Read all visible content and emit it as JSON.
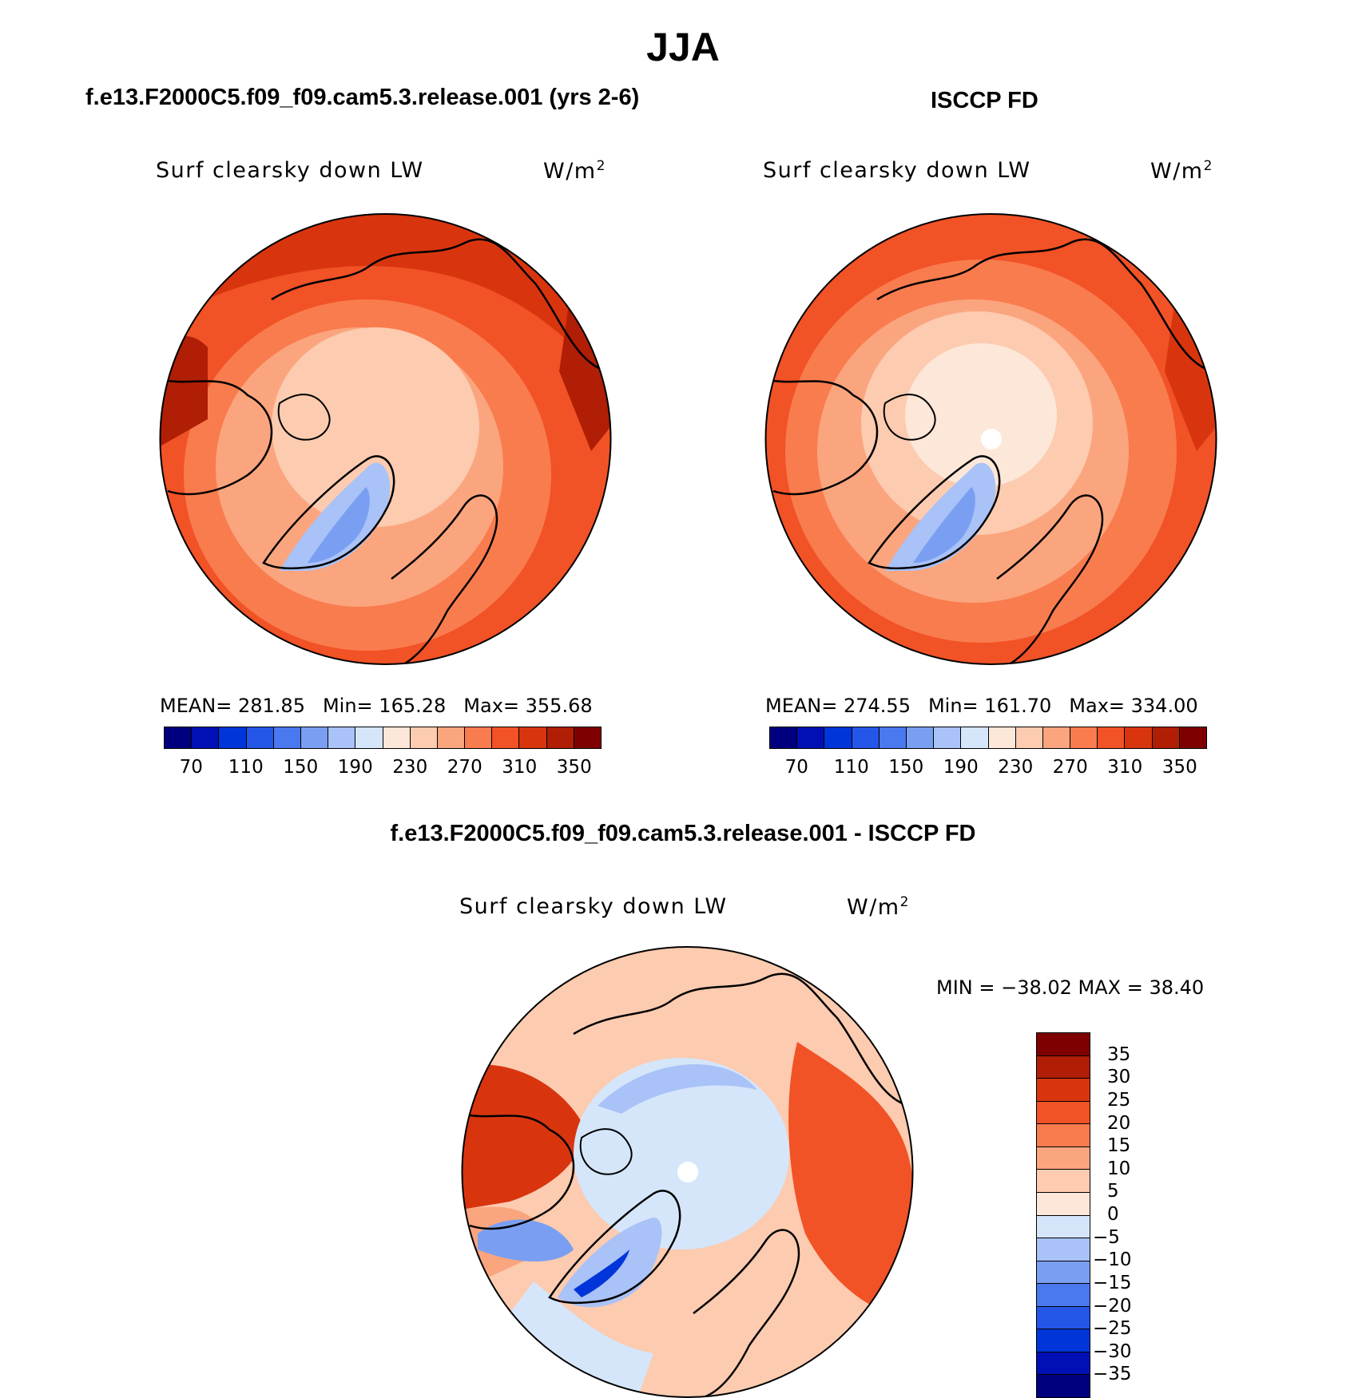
{
  "title": "JJA",
  "panels": {
    "left": {
      "title": "f.e13.F2000C5.f09_f09.cam5.3.release.001 (yrs 2-6)",
      "variable": "Surf clearsky down LW",
      "units": "W/m",
      "units_sup": "2",
      "stats": {
        "mean": "MEAN= 281.85",
        "min": "Min= 165.28",
        "max": "Max= 355.68"
      }
    },
    "right": {
      "title": "ISCCP FD",
      "variable": "Surf clearsky down LW",
      "units": "W/m",
      "units_sup": "2",
      "stats": {
        "mean": "MEAN= 274.55",
        "min": "Min= 161.70",
        "max": "Max= 334.00"
      }
    },
    "diff": {
      "title": "f.e13.F2000C5.f09_f09.cam5.3.release.001 - ISCCP FD",
      "variable": "Surf clearsky down LW",
      "units": "W/m",
      "units_sup": "2",
      "stats": "MIN = −38.02 MAX =  38.40"
    }
  },
  "colorbar_abs": {
    "colors": [
      "#00007f",
      "#0010b5",
      "#0036d9",
      "#2456e8",
      "#4a78ee",
      "#7a9ff2",
      "#a9c2f7",
      "#d5e6fb",
      "#fde7d8",
      "#fccbb0",
      "#fba57e",
      "#f97c4e",
      "#f15226",
      "#d8350f",
      "#b01e06",
      "#7f0000"
    ],
    "labels": [
      "70",
      "110",
      "150",
      "190",
      "230",
      "270",
      "310",
      "350"
    ]
  },
  "colorbar_diff": {
    "colors": [
      "#7f0000",
      "#b01e06",
      "#d8350f",
      "#f15226",
      "#f97c4e",
      "#fba57e",
      "#fccbb0",
      "#fde7d8",
      "#d5e6fb",
      "#a9c2f7",
      "#7a9ff2",
      "#4a78ee",
      "#2456e8",
      "#0036d9",
      "#0010b5",
      "#00007f"
    ],
    "labels": [
      "35",
      "30",
      "25",
      "20",
      "15",
      "10",
      "5",
      "0",
      "−5",
      "−10",
      "−15",
      "−20",
      "−25",
      "−30",
      "−35"
    ]
  }
}
